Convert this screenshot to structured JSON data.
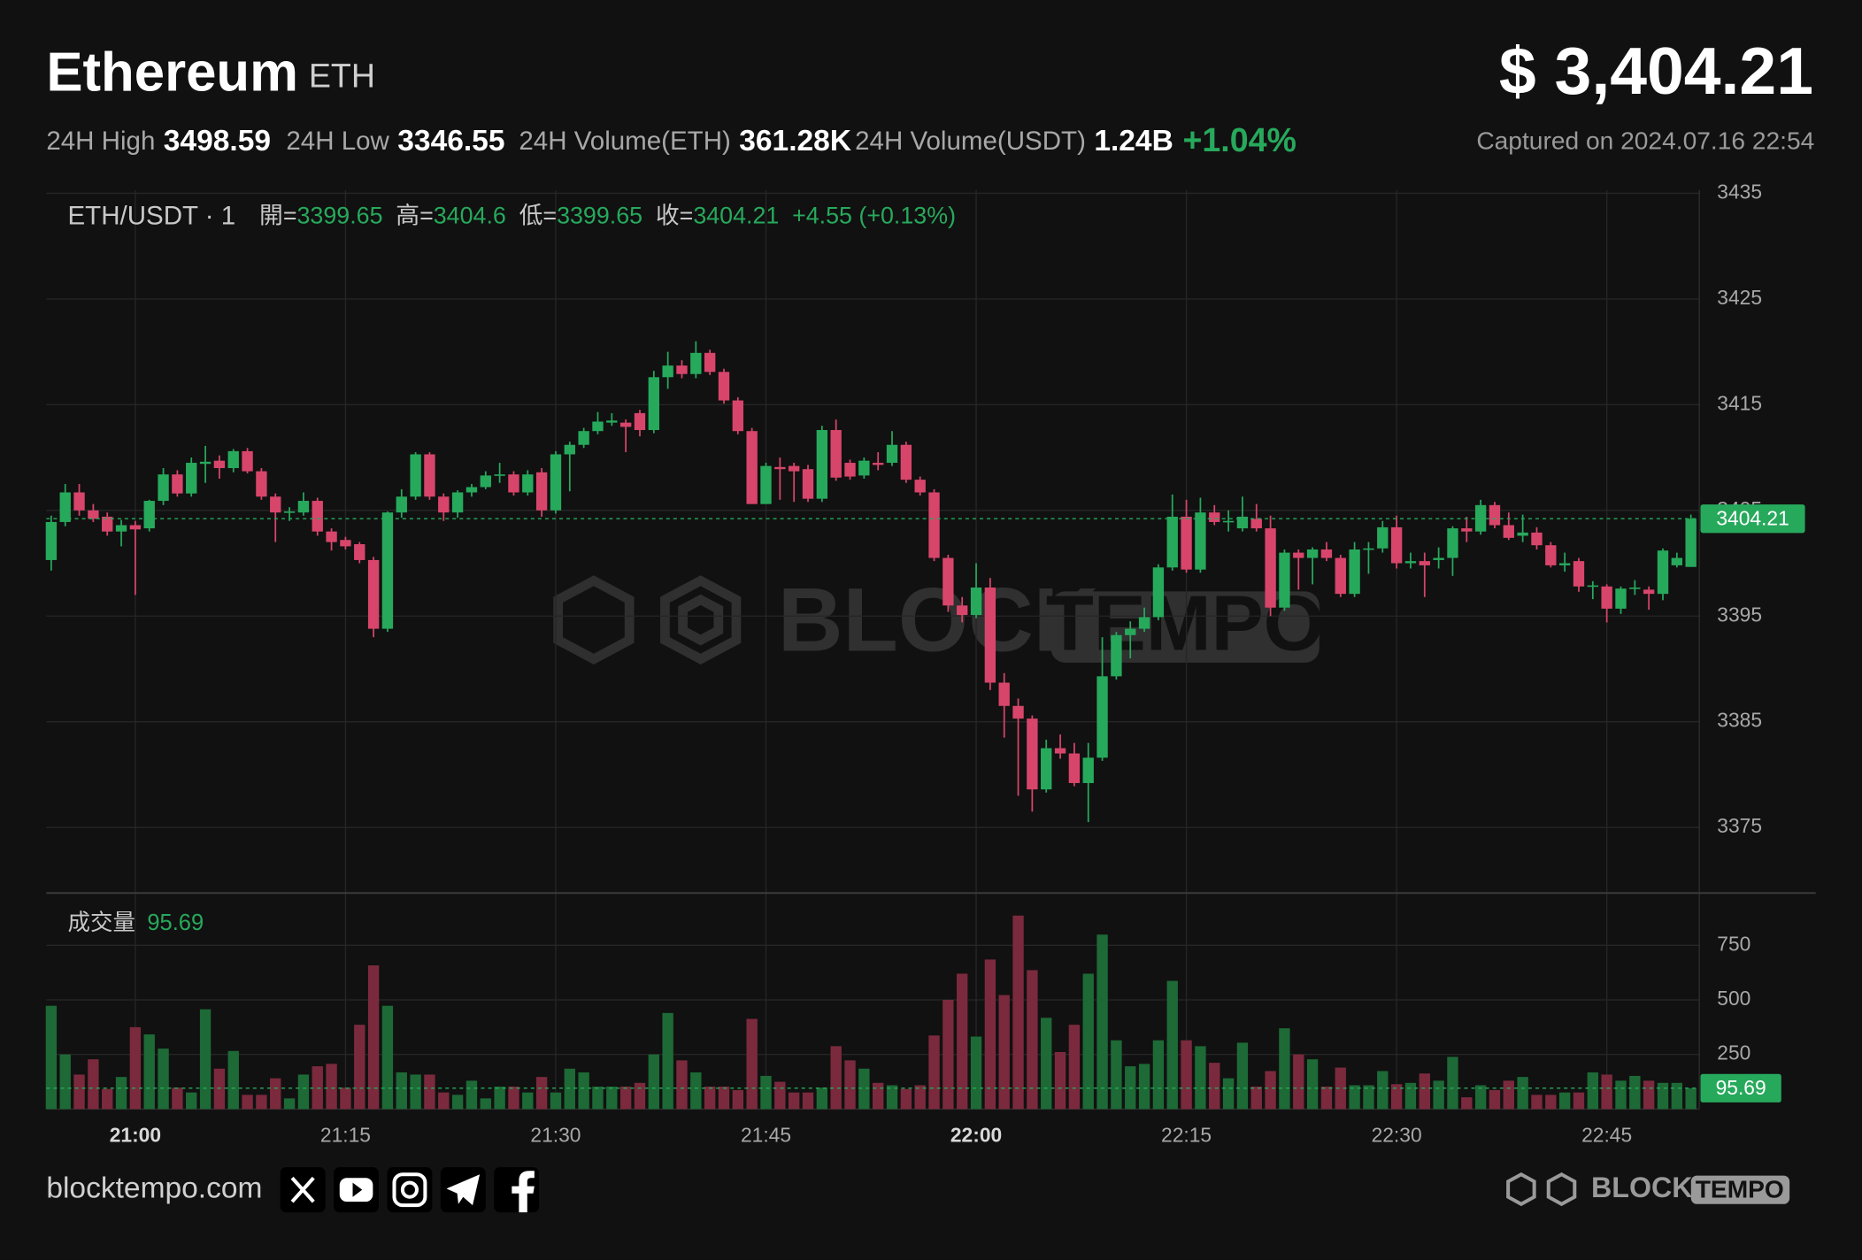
{
  "header": {
    "title": "Ethereum",
    "symbol": "ETH",
    "price": "$ 3,404.21",
    "stats": [
      {
        "label": "24H High",
        "value": "3498.59"
      },
      {
        "label": "24H Low",
        "value": "3346.55"
      },
      {
        "label": "24H Volume(ETH)",
        "value": "361.28K"
      },
      {
        "label": "24H Volume(USDT)",
        "value": "1.24B"
      }
    ],
    "change": "+1.04%",
    "captured": "Captured on 2024.07.16 22:54"
  },
  "chart_data": {
    "type": "candlestick",
    "legend": {
      "pair": "ETH/USDT · 1",
      "open": "開=",
      "high": "高=",
      "low": "低=",
      "close": "收=",
      "diff": "+4.55 (+0.13%)",
      "volume": "成交量"
    },
    "up_color": "#27a95c",
    "down_color": "#d8456b",
    "up_volume_color": "#1d6a36",
    "down_volume_color": "#7b2a3d",
    "xlim": [
      -0.35,
      117.6
    ],
    "xticks": [
      {
        "value": 6,
        "label": "21:00",
        "bold": true
      },
      {
        "value": 21,
        "label": "21:15"
      },
      {
        "value": 36,
        "label": "21:30"
      },
      {
        "value": 51,
        "label": "21:45"
      },
      {
        "value": 66,
        "label": "22:00",
        "bold": true
      },
      {
        "value": 81,
        "label": "22:15"
      },
      {
        "value": 96,
        "label": "22:30"
      },
      {
        "value": 111,
        "label": "22:45"
      }
    ],
    "ylim": [
      3368.8,
      3435.3
    ],
    "yticks": [
      3375,
      3385,
      3395,
      3405,
      3415,
      3425,
      3435
    ],
    "y2lim": [
      0,
      946
    ],
    "y2ticks": [
      250,
      500,
      750
    ],
    "grid": true,
    "candles": [
      [
        3400.3,
        3404.5,
        3399.3,
        3403.9
      ],
      [
        3403.9,
        3407.5,
        3403.5,
        3406.7
      ],
      [
        3406.7,
        3407.5,
        3404.5,
        3405.0
      ],
      [
        3405.0,
        3405.6,
        3403.9,
        3404.2
      ],
      [
        3404.4,
        3404.8,
        3402.6,
        3403.0
      ],
      [
        3403.0,
        3404.1,
        3401.6,
        3403.6
      ],
      [
        3403.6,
        3404.0,
        3397.0,
        3403.2
      ],
      [
        3403.3,
        3406.0,
        3403.0,
        3405.9
      ],
      [
        3405.9,
        3409.0,
        3405.5,
        3408.4
      ],
      [
        3408.4,
        3408.8,
        3406.3,
        3406.6
      ],
      [
        3406.6,
        3410.0,
        3406.3,
        3409.5
      ],
      [
        3409.4,
        3411.1,
        3407.6,
        3409.6
      ],
      [
        3409.7,
        3410.2,
        3408.0,
        3409.0
      ],
      [
        3409.0,
        3410.8,
        3408.6,
        3410.6
      ],
      [
        3410.6,
        3410.9,
        3408.5,
        3408.7
      ],
      [
        3408.7,
        3409.0,
        3406.0,
        3406.3
      ],
      [
        3406.3,
        3406.6,
        3402.0,
        3404.8
      ],
      [
        3404.8,
        3405.3,
        3404.0,
        3404.9
      ],
      [
        3404.8,
        3406.7,
        3404.5,
        3405.9
      ],
      [
        3405.9,
        3406.2,
        3402.6,
        3403.0
      ],
      [
        3403.0,
        3403.3,
        3401.2,
        3402.0
      ],
      [
        3402.2,
        3402.5,
        3401.3,
        3401.6
      ],
      [
        3401.8,
        3402.0,
        3400.0,
        3400.3
      ],
      [
        3400.3,
        3400.6,
        3393.0,
        3393.8
      ],
      [
        3393.8,
        3404.9,
        3393.5,
        3404.8
      ],
      [
        3404.8,
        3407.0,
        3404.3,
        3406.3
      ],
      [
        3406.3,
        3410.5,
        3406.0,
        3410.3
      ],
      [
        3410.3,
        3410.5,
        3406.0,
        3406.3
      ],
      [
        3406.3,
        3406.6,
        3404.0,
        3404.8
      ],
      [
        3404.8,
        3406.9,
        3404.3,
        3406.7
      ],
      [
        3406.7,
        3407.5,
        3406.3,
        3407.2
      ],
      [
        3407.2,
        3408.7,
        3407.0,
        3408.3
      ],
      [
        3408.3,
        3409.5,
        3407.6,
        3408.4
      ],
      [
        3408.4,
        3408.7,
        3406.4,
        3406.7
      ],
      [
        3406.7,
        3408.8,
        3406.4,
        3408.4
      ],
      [
        3408.6,
        3409.0,
        3404.4,
        3405.0
      ],
      [
        3405.0,
        3410.6,
        3404.7,
        3410.3
      ],
      [
        3410.3,
        3411.5,
        3406.8,
        3411.2
      ],
      [
        3411.2,
        3412.8,
        3410.9,
        3412.5
      ],
      [
        3412.5,
        3414.3,
        3412.2,
        3413.4
      ],
      [
        3413.3,
        3414.2,
        3413.0,
        3413.5
      ],
      [
        3413.3,
        3413.6,
        3410.5,
        3412.9
      ],
      [
        3414.2,
        3414.5,
        3412.0,
        3412.6
      ],
      [
        3412.6,
        3418.2,
        3412.3,
        3417.6
      ],
      [
        3417.6,
        3420.0,
        3416.5,
        3418.7
      ],
      [
        3418.7,
        3419.2,
        3417.5,
        3417.9
      ],
      [
        3417.9,
        3421.0,
        3417.5,
        3419.9
      ],
      [
        3419.9,
        3420.2,
        3417.8,
        3418.1
      ],
      [
        3418.1,
        3418.4,
        3415.1,
        3415.4
      ],
      [
        3415.4,
        3415.7,
        3412.2,
        3412.5
      ],
      [
        3412.5,
        3412.8,
        3405.6,
        3405.6
      ],
      [
        3405.6,
        3409.5,
        3405.6,
        3409.2
      ],
      [
        3409.1,
        3410.0,
        3406.0,
        3408.9
      ],
      [
        3409.2,
        3409.5,
        3405.8,
        3408.7
      ],
      [
        3408.9,
        3409.3,
        3405.8,
        3406.1
      ],
      [
        3406.1,
        3413.0,
        3405.8,
        3412.6
      ],
      [
        3412.6,
        3413.6,
        3407.8,
        3408.1
      ],
      [
        3409.5,
        3409.8,
        3407.9,
        3408.2
      ],
      [
        3408.3,
        3410.0,
        3408.0,
        3409.7
      ],
      [
        3409.5,
        3410.5,
        3408.8,
        3409.3
      ],
      [
        3409.5,
        3412.5,
        3409.2,
        3411.2
      ],
      [
        3411.2,
        3411.5,
        3407.6,
        3407.9
      ],
      [
        3407.9,
        3408.2,
        3406.4,
        3406.7
      ],
      [
        3406.7,
        3407.0,
        3400.2,
        3400.5
      ],
      [
        3400.5,
        3400.8,
        3395.4,
        3396.0
      ],
      [
        3396.0,
        3396.8,
        3394.4,
        3395.1
      ],
      [
        3395.1,
        3400.0,
        3394.8,
        3397.7
      ],
      [
        3397.7,
        3398.6,
        3388.0,
        3388.7
      ],
      [
        3388.7,
        3389.6,
        3383.5,
        3386.5
      ],
      [
        3386.5,
        3387.2,
        3378.0,
        3385.3
      ],
      [
        3385.3,
        3385.6,
        3376.5,
        3378.6
      ],
      [
        3378.6,
        3383.3,
        3378.3,
        3382.5
      ],
      [
        3382.5,
        3383.8,
        3381.5,
        3382.0
      ],
      [
        3382.0,
        3383.0,
        3378.9,
        3379.2
      ],
      [
        3379.2,
        3383.0,
        3375.5,
        3381.6
      ],
      [
        3381.6,
        3393.0,
        3381.3,
        3389.3
      ],
      [
        3389.3,
        3393.5,
        3389.0,
        3393.2
      ],
      [
        3393.2,
        3394.5,
        3391.0,
        3393.8
      ],
      [
        3393.8,
        3395.8,
        3393.5,
        3394.9
      ],
      [
        3394.9,
        3399.9,
        3394.6,
        3399.6
      ],
      [
        3399.6,
        3406.5,
        3399.3,
        3404.4
      ],
      [
        3404.4,
        3406.0,
        3399.1,
        3399.4
      ],
      [
        3399.4,
        3406.2,
        3399.1,
        3404.8
      ],
      [
        3404.8,
        3405.5,
        3403.6,
        3403.9
      ],
      [
        3403.9,
        3405.0,
        3403.0,
        3404.0
      ],
      [
        3403.3,
        3406.3,
        3403.0,
        3404.4
      ],
      [
        3404.2,
        3405.6,
        3403.0,
        3403.3
      ],
      [
        3403.3,
        3404.5,
        3395.0,
        3395.8
      ],
      [
        3395.8,
        3401.3,
        3395.5,
        3401.0
      ],
      [
        3401.0,
        3401.3,
        3397.5,
        3400.5
      ],
      [
        3400.5,
        3401.5,
        3398.0,
        3401.3
      ],
      [
        3401.3,
        3402.0,
        3400.2,
        3400.5
      ],
      [
        3400.5,
        3400.8,
        3396.8,
        3397.1
      ],
      [
        3397.1,
        3402.0,
        3396.8,
        3401.3
      ],
      [
        3401.3,
        3402.0,
        3399.0,
        3401.4
      ],
      [
        3401.4,
        3404.0,
        3401.0,
        3403.4
      ],
      [
        3403.4,
        3404.5,
        3399.5,
        3400.0
      ],
      [
        3400.0,
        3401.0,
        3399.5,
        3400.2
      ],
      [
        3400.2,
        3401.0,
        3396.8,
        3399.8
      ],
      [
        3400.3,
        3401.5,
        3399.5,
        3400.5
      ],
      [
        3400.5,
        3403.5,
        3398.8,
        3403.3
      ],
      [
        3403.3,
        3404.4,
        3402.0,
        3403.0
      ],
      [
        3403.0,
        3406.0,
        3402.7,
        3405.5
      ],
      [
        3405.5,
        3405.8,
        3403.3,
        3403.6
      ],
      [
        3403.6,
        3404.8,
        3402.2,
        3402.4
      ],
      [
        3402.6,
        3404.6,
        3402.0,
        3402.9
      ],
      [
        3402.9,
        3403.4,
        3401.3,
        3401.7
      ],
      [
        3401.7,
        3402.0,
        3399.6,
        3399.8
      ],
      [
        3399.8,
        3401.0,
        3399.2,
        3400.0
      ],
      [
        3400.2,
        3400.5,
        3397.3,
        3397.8
      ],
      [
        3397.8,
        3398.3,
        3396.6,
        3397.9
      ],
      [
        3397.8,
        3398.0,
        3394.4,
        3395.7
      ],
      [
        3395.7,
        3397.8,
        3395.2,
        3397.6
      ],
      [
        3397.6,
        3398.4,
        3397.0,
        3397.7
      ],
      [
        3397.5,
        3397.8,
        3395.6,
        3397.1
      ],
      [
        3397.1,
        3401.4,
        3396.5,
        3401.2
      ],
      [
        3399.8,
        3401.0,
        3399.6,
        3400.5
      ],
      [
        3399.65,
        3404.6,
        3399.65,
        3404.21
      ]
    ],
    "volumes": [
      473,
      250,
      158,
      228,
      92,
      147,
      375,
      342,
      277,
      98,
      76,
      457,
      185,
      266,
      65,
      65,
      141,
      49,
      158,
      196,
      207,
      98,
      386,
      658,
      473,
      168,
      158,
      158,
      76,
      65,
      130,
      49,
      103,
      103,
      76,
      147,
      76,
      185,
      168,
      103,
      103,
      103,
      120,
      250,
      440,
      223,
      168,
      103,
      103,
      87,
      413,
      152,
      125,
      76,
      76,
      98,
      288,
      223,
      185,
      120,
      109,
      92,
      109,
      337,
      500,
      620,
      332,
      685,
      522,
      886,
      636,
      418,
      261,
      386,
      620,
      799,
      315,
      196,
      207,
      315,
      587,
      315,
      288,
      212,
      141,
      304,
      103,
      174,
      370,
      250,
      228,
      103,
      190,
      109,
      109,
      174,
      114,
      120,
      163,
      130,
      239,
      54,
      109,
      87,
      130,
      147,
      65,
      65,
      76,
      76,
      168,
      158,
      130,
      152,
      130,
      120,
      120,
      95.69
    ]
  },
  "watermark": [
    "BLOCK",
    "TEMPO"
  ],
  "footer": {
    "site": "blocktempo.com"
  }
}
